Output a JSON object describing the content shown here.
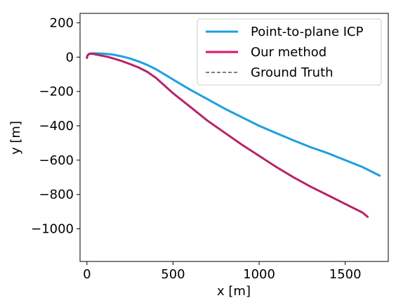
{
  "chart_data": {
    "type": "line",
    "xlabel": "x [m]",
    "ylabel": "y [m]",
    "xlim": [
      -40,
      1750
    ],
    "ylim": [
      -1190,
      255
    ],
    "xticks": [
      0,
      500,
      1000,
      1500
    ],
    "yticks": [
      200,
      0,
      -200,
      -400,
      -600,
      -800,
      -1000
    ],
    "xtick_labels": [
      "0",
      "500",
      "1000",
      "1500"
    ],
    "ytick_labels": [
      "200",
      "0",
      "−200",
      "−400",
      "−600",
      "−800",
      "−1000"
    ],
    "grid": false,
    "legend_position": "top-right",
    "series": [
      {
        "name": "Point-to-plane ICP",
        "color": "#1f9fdf",
        "style": "solid",
        "x": [
          0,
          5,
          15,
          30,
          60,
          100,
          150,
          200,
          250,
          300,
          350,
          400,
          450,
          500,
          600,
          700,
          800,
          900,
          1000,
          1100,
          1200,
          1300,
          1400,
          1500,
          1600,
          1700
        ],
        "y": [
          0,
          12,
          20,
          22,
          22,
          20,
          15,
          5,
          -8,
          -25,
          -45,
          -70,
          -100,
          -130,
          -190,
          -245,
          -300,
          -350,
          -400,
          -443,
          -485,
          -525,
          -560,
          -600,
          -640,
          -690
        ]
      },
      {
        "name": "Our method",
        "color": "#e0116f",
        "style": "solid",
        "x": [
          0,
          3,
          10,
          20,
          40,
          80,
          120,
          160,
          200,
          250,
          300,
          350,
          400,
          450,
          500,
          600,
          700,
          800,
          900,
          1000,
          1100,
          1200,
          1300,
          1400,
          1500,
          1600,
          1630
        ],
        "y": [
          -5,
          8,
          18,
          20,
          18,
          10,
          2,
          -10,
          -22,
          -40,
          -60,
          -85,
          -120,
          -165,
          -210,
          -290,
          -370,
          -440,
          -510,
          -575,
          -640,
          -700,
          -755,
          -805,
          -855,
          -905,
          -930
        ]
      },
      {
        "name": "Ground Truth",
        "color": "#555555",
        "style": "dashed",
        "x": [
          0,
          3,
          10,
          20,
          40,
          80,
          120,
          160,
          200,
          250,
          300,
          350,
          400,
          450,
          500,
          600,
          700,
          800,
          900,
          1000,
          1100,
          1200,
          1300,
          1400,
          1500,
          1600,
          1630
        ],
        "y": [
          -5,
          8,
          18,
          20,
          18,
          10,
          2,
          -10,
          -22,
          -40,
          -60,
          -85,
          -120,
          -165,
          -210,
          -290,
          -370,
          -440,
          -510,
          -575,
          -640,
          -700,
          -755,
          -805,
          -855,
          -905,
          -930
        ]
      }
    ]
  }
}
